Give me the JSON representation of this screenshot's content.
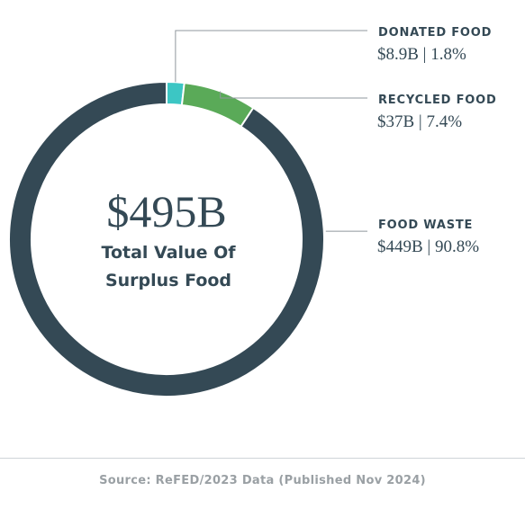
{
  "chart_data": {
    "type": "pie",
    "center_value": "$495B",
    "center_label_line1": "Total Value Of",
    "center_label_line2": "Surplus Food",
    "slices": [
      {
        "name": "DONATED FOOD",
        "value": 8.9,
        "display": "$8.9B | 1.8%",
        "color": "#3cc6c4"
      },
      {
        "name": "RECYCLED FOOD",
        "value": 37,
        "display": "$37B | 7.4%",
        "color": "#5aaa58"
      },
      {
        "name": "FOOD WASTE",
        "value": 449,
        "display": "$449B | 90.8%",
        "color": "#344955"
      }
    ],
    "legend": "right",
    "source": "Source: ReFED/2023 Data (Published Nov 2024)"
  },
  "colors": {
    "text_dark": "#344955",
    "leader_line": "#8f979c",
    "footer_text": "#9aa0a4"
  }
}
